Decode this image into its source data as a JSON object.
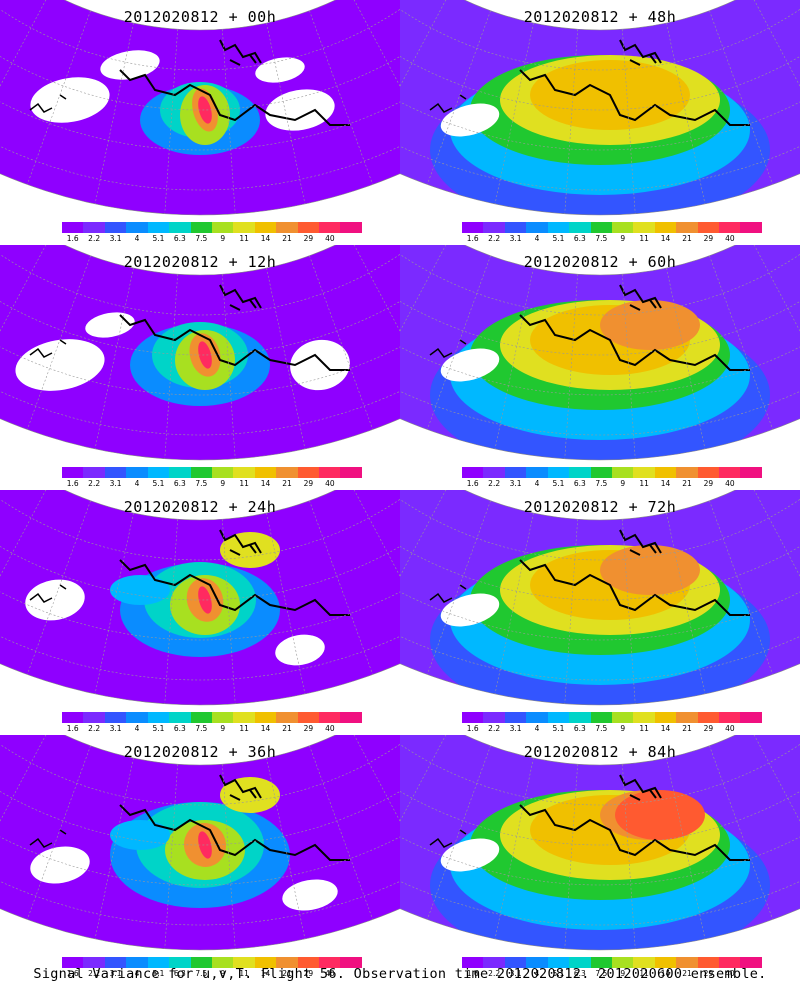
{
  "panels": [
    {
      "title": "2012020812 + 00h",
      "stage": 0
    },
    {
      "title": "2012020812 + 48h",
      "stage": 4
    },
    {
      "title": "2012020812 + 12h",
      "stage": 1
    },
    {
      "title": "2012020812 + 60h",
      "stage": 5
    },
    {
      "title": "2012020812 + 24h",
      "stage": 2
    },
    {
      "title": "2012020812 + 72h",
      "stage": 6
    },
    {
      "title": "2012020812 + 36h",
      "stage": 3
    },
    {
      "title": "2012020812 + 84h",
      "stage": 7
    }
  ],
  "colorbar": {
    "colors": [
      "#8f00ff",
      "#7b2aff",
      "#3355ff",
      "#0a8cff",
      "#00b8ff",
      "#00d4c8",
      "#20c830",
      "#a8e020",
      "#e0e020",
      "#f0c000",
      "#f09030",
      "#ff5a30",
      "#ff2a60",
      "#f01080"
    ],
    "labels": [
      "1.6",
      "2.2",
      "3.1",
      "4",
      "5.1",
      "6.3",
      "7.5",
      "9",
      "11",
      "14",
      "21",
      "29",
      "40"
    ]
  },
  "caption": "Signal Variance for u,v,T. Flight 56. Observation time 2012020812. 2012020600 ensemble."
}
